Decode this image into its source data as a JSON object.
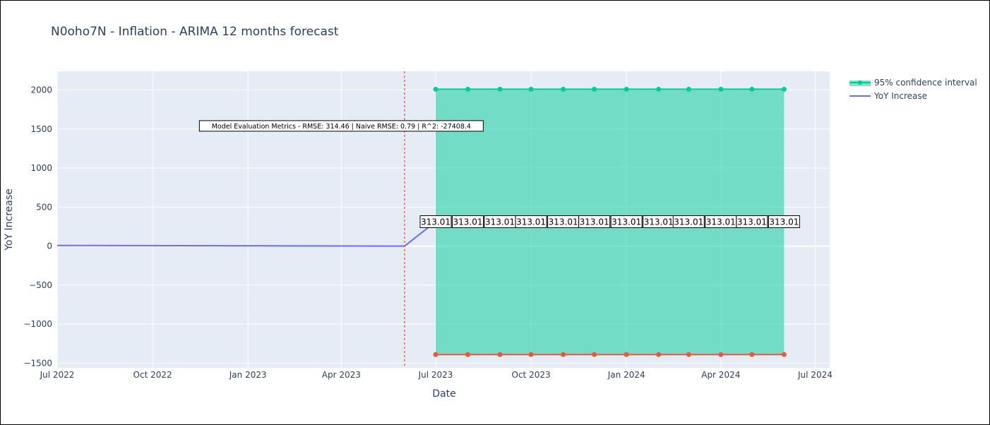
{
  "title": "N0oho7N - Inflation - ARIMA 12 months forecast",
  "chart_data": {
    "type": "line",
    "xlabel": "Date",
    "ylabel": "YoY Increase",
    "xlim": [
      "2022-07-01",
      "2024-07-15"
    ],
    "ylim": [
      -1560,
      2240
    ],
    "grid": true,
    "legend_position": "top-right",
    "x_ticks": [
      {
        "date": "2022-07-01",
        "label": "Jul 2022"
      },
      {
        "date": "2022-10-01",
        "label": "Oct 2022"
      },
      {
        "date": "2023-01-01",
        "label": "Jan 2023"
      },
      {
        "date": "2023-04-01",
        "label": "Apr 2023"
      },
      {
        "date": "2023-07-01",
        "label": "Jul 2023"
      },
      {
        "date": "2023-10-01",
        "label": "Oct 2023"
      },
      {
        "date": "2024-01-01",
        "label": "Jan 2024"
      },
      {
        "date": "2024-04-01",
        "label": "Apr 2024"
      },
      {
        "date": "2024-07-01",
        "label": "Jul 2024"
      }
    ],
    "y_ticks": [
      {
        "value": 2000,
        "label": "2000"
      },
      {
        "value": 1500,
        "label": "1500"
      },
      {
        "value": 1000,
        "label": "1000"
      },
      {
        "value": 500,
        "label": "500"
      },
      {
        "value": 0,
        "label": "0"
      },
      {
        "value": -500,
        "label": "−500"
      },
      {
        "value": -1000,
        "label": "−1000"
      },
      {
        "value": -1500,
        "label": "−1500"
      }
    ],
    "series": [
      {
        "name": "YoY Increase",
        "color": "#636efa",
        "x": [
          "2022-07-01",
          "2023-06-01",
          "2023-07-01"
        ],
        "y": [
          8,
          0,
          313.01
        ]
      }
    ],
    "confidence_interval": {
      "name": "95% confidence interval",
      "fill_color": "#00cc96",
      "upper_color": "#00cc96",
      "lower_color": "#ef553b",
      "x": [
        "2023-07-01",
        "2023-08-01",
        "2023-09-01",
        "2023-10-01",
        "2023-11-01",
        "2023-12-01",
        "2024-01-01",
        "2024-02-01",
        "2024-03-01",
        "2024-04-01",
        "2024-05-01",
        "2024-06-01"
      ],
      "upper": [
        2010,
        2010,
        2010,
        2010,
        2010,
        2010,
        2010,
        2010,
        2010,
        2010,
        2010,
        2010
      ],
      "lower": [
        -1390,
        -1390,
        -1390,
        -1390,
        -1390,
        -1390,
        -1390,
        -1390,
        -1390,
        -1390,
        -1390,
        -1390
      ]
    },
    "forecast_labels": {
      "y": 313.01,
      "values": [
        "313.01",
        "313.01",
        "313.01",
        "313.01",
        "313.01",
        "313.01",
        "313.01",
        "313.01",
        "313.01",
        "313.01",
        "313.01",
        "313.01"
      ]
    },
    "vline": {
      "date": "2023-06-01",
      "color": "#ef553b",
      "style": "dashed"
    },
    "annotation": {
      "text": "Model Evaluation Metrics - RMSE: 314.46 | Naive RMSE: 0.79 | R^2: -27408.4",
      "x": "2023-04-01",
      "y": 1540
    }
  }
}
